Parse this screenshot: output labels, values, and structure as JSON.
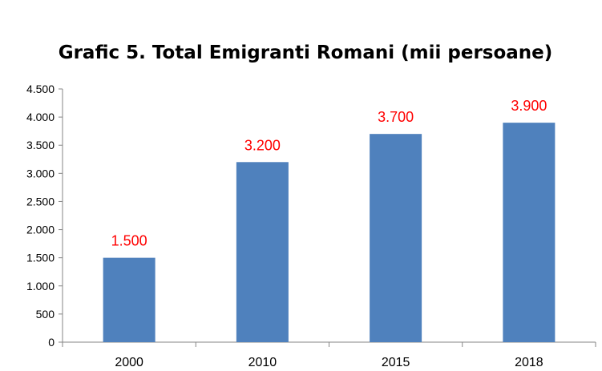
{
  "chart_data": {
    "type": "bar",
    "title": "Grafic 5. Total Emigranti Romani (mii persoane)",
    "xlabel": "",
    "ylabel": "",
    "categories": [
      "2000",
      "2010",
      "2015",
      "2018"
    ],
    "values": [
      1500,
      3200,
      3700,
      3900
    ],
    "data_labels": [
      "1.500",
      "3.200",
      "3.700",
      "3.900"
    ],
    "ylim": [
      0,
      4500
    ],
    "yticks": [
      0,
      500,
      1000,
      1500,
      2000,
      2500,
      3000,
      3500,
      4000,
      4500
    ],
    "ytick_labels": [
      "0",
      "500",
      "1.000",
      "1.500",
      "2.000",
      "2.500",
      "3.000",
      "3.500",
      "4.000",
      "4.500"
    ],
    "grid": false,
    "legend": "none",
    "colors": {
      "bar": "#4F81BD",
      "data_label": "#FF0000",
      "axis": "#868686"
    }
  }
}
